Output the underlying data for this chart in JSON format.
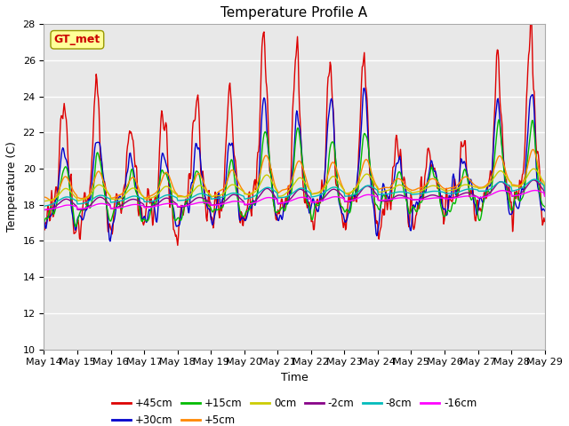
{
  "title": "Temperature Profile A",
  "xlabel": "Time",
  "ylabel": "Temperature (C)",
  "ylim": [
    10,
    28
  ],
  "yticks": [
    10,
    12,
    14,
    16,
    18,
    20,
    22,
    24,
    26,
    28
  ],
  "x_labels": [
    "May 14",
    "May 15",
    "May 16",
    "May 17",
    "May 18",
    "May 19",
    "May 20",
    "May 21",
    "May 22",
    "May 23",
    "May 24",
    "May 25",
    "May 26",
    "May 27",
    "May 28",
    "May 29"
  ],
  "n_days": 15,
  "points_per_day": 48,
  "series": [
    {
      "label": "+45cm",
      "color": "#DD0000",
      "lw": 1.0
    },
    {
      "label": "+30cm",
      "color": "#0000CC",
      "lw": 1.0
    },
    {
      "label": "+15cm",
      "color": "#00BB00",
      "lw": 1.0
    },
    {
      "label": "+5cm",
      "color": "#FF8800",
      "lw": 1.0
    },
    {
      "label": "0cm",
      "color": "#CCCC00",
      "lw": 1.0
    },
    {
      "label": "-2cm",
      "color": "#880088",
      "lw": 1.0
    },
    {
      "label": "-8cm",
      "color": "#00BBBB",
      "lw": 1.0
    },
    {
      "label": "-16cm",
      "color": "#FF00FF",
      "lw": 1.0
    }
  ],
  "gt_met_box_facecolor": "#FFFF99",
  "gt_met_text_color": "#CC0000",
  "gt_met_edge_color": "#999900",
  "plot_bg_color": "#E8E8E8",
  "title_fontsize": 11,
  "axis_label_fontsize": 9,
  "tick_fontsize": 8,
  "legend_fontsize": 8.5
}
